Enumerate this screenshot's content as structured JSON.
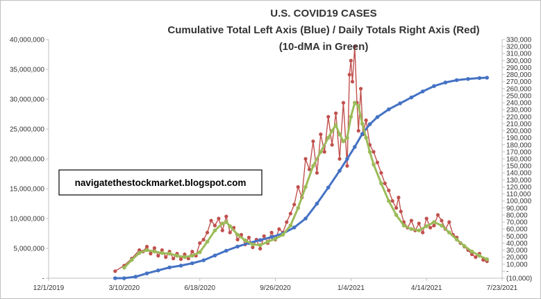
{
  "chart_data": {
    "type": "line",
    "title": "U.S. COVID19 CASES",
    "subtitle": "Cumulative Total Left Axis (Blue) / Daily Totals Right Axis (Red)",
    "subtitle2": "(10-dMA in Green)",
    "watermark": "navigatethestockmarket.blogspot.com",
    "x_tick_labels": [
      "12/1/2019",
      "3/10/2020",
      "6/18/2020",
      "9/26/2020",
      "1/4/2021",
      "4/14/2021",
      "7/23/2021"
    ],
    "x_ticks_day": [
      0,
      100,
      200,
      300,
      400,
      500,
      600
    ],
    "left_axis": {
      "ylim": [
        0,
        40000000
      ],
      "tick_values": [
        0,
        5000000,
        10000000,
        15000000,
        20000000,
        25000000,
        30000000,
        35000000,
        40000000
      ],
      "tick_labels": [
        "-",
        "5,000,000",
        "10,000,000",
        "15,000,000",
        "20,000,000",
        "25,000,000",
        "30,000,000",
        "35,000,000",
        "40,000,000"
      ]
    },
    "right_axis": {
      "ylim": [
        -10000,
        330000
      ],
      "tick_values": [
        -10000,
        0,
        10000,
        20000,
        30000,
        40000,
        50000,
        60000,
        70000,
        80000,
        90000,
        100000,
        110000,
        120000,
        130000,
        140000,
        150000,
        160000,
        170000,
        180000,
        190000,
        200000,
        210000,
        220000,
        230000,
        240000,
        250000,
        260000,
        270000,
        280000,
        290000,
        300000,
        310000,
        320000,
        330000
      ],
      "tick_labels": [
        "(10,000)",
        "-",
        "10,000",
        "20,000",
        "30,000",
        "40,000",
        "50,000",
        "60,000",
        "70,000",
        "80,000",
        "90,000",
        "100,000",
        "110,000",
        "120,000",
        "130,000",
        "140,000",
        "150,000",
        "160,000",
        "170,000",
        "180,000",
        "190,000",
        "200,000",
        "210,000",
        "220,000",
        "230,000",
        "240,000",
        "250,000",
        "260,000",
        "270,000",
        "280,000",
        "290,000",
        "300,000",
        "310,000",
        "320,000",
        "330,000"
      ]
    },
    "x_unit": "days since 12/1/2019",
    "series": [
      {
        "name": "Cumulative Total",
        "axis": "left",
        "color": "#4472C4",
        "points": [
          [
            88,
            0
          ],
          [
            100,
            5000
          ],
          [
            115,
            250000
          ],
          [
            130,
            800000
          ],
          [
            145,
            1300000
          ],
          [
            160,
            1800000
          ],
          [
            175,
            2100000
          ],
          [
            190,
            2500000
          ],
          [
            205,
            3000000
          ],
          [
            220,
            3800000
          ],
          [
            235,
            4600000
          ],
          [
            250,
            5300000
          ],
          [
            265,
            5900000
          ],
          [
            280,
            6400000
          ],
          [
            295,
            6900000
          ],
          [
            310,
            7500000
          ],
          [
            325,
            8500000
          ],
          [
            340,
            10000000
          ],
          [
            355,
            12500000
          ],
          [
            370,
            15200000
          ],
          [
            385,
            18000000
          ],
          [
            395,
            20000000
          ],
          [
            405,
            22000000
          ],
          [
            415,
            24200000
          ],
          [
            425,
            25800000
          ],
          [
            435,
            27000000
          ],
          [
            450,
            28300000
          ],
          [
            465,
            29300000
          ],
          [
            480,
            30300000
          ],
          [
            495,
            31300000
          ],
          [
            510,
            32200000
          ],
          [
            525,
            32800000
          ],
          [
            540,
            33200000
          ],
          [
            555,
            33400000
          ],
          [
            570,
            33550000
          ],
          [
            580,
            33600000
          ]
        ]
      },
      {
        "name": "Daily Totals",
        "axis": "right",
        "color": "#C0504D",
        "points": [
          [
            88,
            0
          ],
          [
            100,
            8000
          ],
          [
            110,
            18000
          ],
          [
            120,
            30000
          ],
          [
            125,
            28000
          ],
          [
            130,
            35000
          ],
          [
            135,
            25000
          ],
          [
            140,
            33000
          ],
          [
            145,
            22000
          ],
          [
            150,
            30000
          ],
          [
            155,
            20000
          ],
          [
            160,
            28000
          ],
          [
            165,
            18000
          ],
          [
            170,
            25000
          ],
          [
            175,
            17000
          ],
          [
            180,
            24000
          ],
          [
            185,
            18000
          ],
          [
            190,
            28000
          ],
          [
            195,
            22000
          ],
          [
            200,
            40000
          ],
          [
            205,
            45000
          ],
          [
            210,
            55000
          ],
          [
            215,
            72000
          ],
          [
            220,
            65000
          ],
          [
            225,
            75000
          ],
          [
            230,
            58000
          ],
          [
            235,
            78000
          ],
          [
            240,
            55000
          ],
          [
            245,
            62000
          ],
          [
            250,
            45000
          ],
          [
            255,
            52000
          ],
          [
            260,
            38000
          ],
          [
            265,
            48000
          ],
          [
            270,
            34000
          ],
          [
            275,
            45000
          ],
          [
            280,
            32000
          ],
          [
            285,
            50000
          ],
          [
            290,
            40000
          ],
          [
            295,
            55000
          ],
          [
            300,
            45000
          ],
          [
            305,
            60000
          ],
          [
            310,
            55000
          ],
          [
            315,
            70000
          ],
          [
            320,
            82000
          ],
          [
            325,
            95000
          ],
          [
            330,
            120000
          ],
          [
            335,
            105000
          ],
          [
            340,
            160000
          ],
          [
            345,
            145000
          ],
          [
            350,
            185000
          ],
          [
            355,
            140000
          ],
          [
            360,
            195000
          ],
          [
            365,
            170000
          ],
          [
            370,
            220000
          ],
          [
            375,
            180000
          ],
          [
            380,
            225000
          ],
          [
            385,
            160000
          ],
          [
            390,
            240000
          ],
          [
            395,
            150000
          ],
          [
            398,
            280000
          ],
          [
            400,
            300000
          ],
          [
            402,
            270000
          ],
          [
            405,
            320000
          ],
          [
            408,
            240000
          ],
          [
            410,
            200000
          ],
          [
            413,
            260000
          ],
          [
            416,
            195000
          ],
          [
            420,
            215000
          ],
          [
            425,
            180000
          ],
          [
            430,
            170000
          ],
          [
            435,
            155000
          ],
          [
            440,
            140000
          ],
          [
            445,
            125000
          ],
          [
            450,
            115000
          ],
          [
            455,
            100000
          ],
          [
            460,
            90000
          ],
          [
            463,
            105000
          ],
          [
            466,
            85000
          ],
          [
            470,
            70000
          ],
          [
            475,
            62000
          ],
          [
            480,
            72000
          ],
          [
            485,
            58000
          ],
          [
            490,
            68000
          ],
          [
            495,
            55000
          ],
          [
            500,
            75000
          ],
          [
            505,
            62000
          ],
          [
            510,
            65000
          ],
          [
            515,
            80000
          ],
          [
            520,
            72000
          ],
          [
            525,
            60000
          ],
          [
            530,
            70000
          ],
          [
            535,
            52000
          ],
          [
            540,
            48000
          ],
          [
            545,
            40000
          ],
          [
            550,
            35000
          ],
          [
            555,
            30000
          ],
          [
            560,
            24000
          ],
          [
            565,
            20000
          ],
          [
            570,
            25000
          ],
          [
            575,
            16000
          ],
          [
            580,
            14000
          ]
        ]
      },
      {
        "name": "10-dMA",
        "axis": "right",
        "color": "#9BBB59",
        "points": [
          [
            100,
            5000
          ],
          [
            110,
            16000
          ],
          [
            120,
            26000
          ],
          [
            130,
            30000
          ],
          [
            140,
            28000
          ],
          [
            150,
            26000
          ],
          [
            160,
            25000
          ],
          [
            170,
            22000
          ],
          [
            180,
            20000
          ],
          [
            190,
            22000
          ],
          [
            200,
            27000
          ],
          [
            210,
            42000
          ],
          [
            220,
            58000
          ],
          [
            230,
            68000
          ],
          [
            235,
            70000
          ],
          [
            240,
            64000
          ],
          [
            250,
            52000
          ],
          [
            260,
            44000
          ],
          [
            270,
            38000
          ],
          [
            280,
            37000
          ],
          [
            290,
            42000
          ],
          [
            300,
            46000
          ],
          [
            310,
            52000
          ],
          [
            320,
            65000
          ],
          [
            330,
            90000
          ],
          [
            340,
            120000
          ],
          [
            350,
            150000
          ],
          [
            360,
            170000
          ],
          [
            370,
            190000
          ],
          [
            375,
            200000
          ],
          [
            380,
            208000
          ],
          [
            385,
            195000
          ],
          [
            390,
            185000
          ],
          [
            395,
            190000
          ],
          [
            400,
            220000
          ],
          [
            405,
            240000
          ],
          [
            410,
            235000
          ],
          [
            415,
            210000
          ],
          [
            420,
            190000
          ],
          [
            425,
            170000
          ],
          [
            430,
            152000
          ],
          [
            440,
            125000
          ],
          [
            450,
            100000
          ],
          [
            460,
            80000
          ],
          [
            470,
            65000
          ],
          [
            480,
            60000
          ],
          [
            490,
            58000
          ],
          [
            500,
            64000
          ],
          [
            510,
            70000
          ],
          [
            520,
            65000
          ],
          [
            530,
            55000
          ],
          [
            540,
            45000
          ],
          [
            550,
            36000
          ],
          [
            560,
            28000
          ],
          [
            570,
            22000
          ],
          [
            580,
            17000
          ]
        ]
      }
    ]
  }
}
